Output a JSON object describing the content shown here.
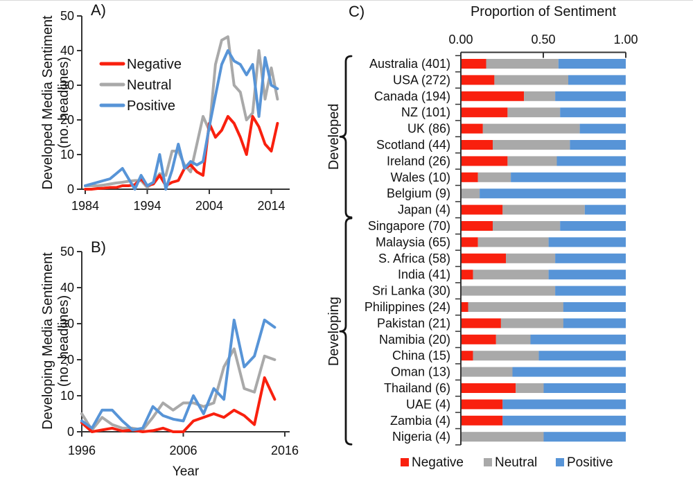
{
  "colors": {
    "negative": "#f9200e",
    "neutral": "#a9a9a9",
    "positive": "#5794d7",
    "axis": "#333333",
    "text": "#111111"
  },
  "panel_a": {
    "letter": "A)",
    "ylabel_line1": "Developed Media Sentiment",
    "ylabel_line2": "(no. headlines)"
  },
  "panel_b": {
    "letter": "B)",
    "ylabel_line1": "Developing Media Sentiment",
    "ylabel_line2": "(no. headlines)",
    "xlabel": "Year"
  },
  "panel_c": {
    "letter": "C)",
    "title": "Proportion of Sentiment"
  },
  "chart_data": [
    {
      "id": "A",
      "type": "line",
      "ylabel": "Developed Media Sentiment (no. headlines)",
      "ylim": [
        0,
        50
      ],
      "yticks": [
        0,
        10,
        20,
        30,
        40,
        50
      ],
      "xticks": [
        "1984",
        "1994",
        "2004",
        "2014"
      ],
      "xtick_years": [
        1984,
        1994,
        2004,
        2014
      ],
      "years": [
        1984,
        1985,
        1986,
        1987,
        1988,
        1989,
        1990,
        1991,
        1992,
        1993,
        1994,
        1995,
        1996,
        1997,
        1998,
        1999,
        2000,
        2001,
        2002,
        2003,
        2004,
        2005,
        2006,
        2007,
        2008,
        2009,
        2010,
        2011,
        2012,
        2013,
        2014,
        2015
      ],
      "legend": [
        "Negative",
        "Neutral",
        "Positive"
      ],
      "series": [
        {
          "name": "Negative",
          "color_key": "negative",
          "values": [
            0,
            0,
            0.2,
            0.3,
            0.5,
            0.5,
            1,
            1,
            1.3,
            3,
            1,
            1.5,
            4,
            1,
            2,
            2.5,
            6,
            7,
            5,
            4,
            19,
            15,
            17,
            21,
            19,
            15,
            10,
            21,
            18,
            13,
            11,
            19
          ]
        },
        {
          "name": "Neutral",
          "color_key": "neutral",
          "values": [
            1,
            1,
            1,
            1.2,
            1.5,
            1.8,
            2,
            2.3,
            2.5,
            2.5,
            0.5,
            2,
            4.5,
            4,
            11,
            11,
            7,
            5,
            13,
            21,
            17,
            36,
            43,
            44,
            30,
            28,
            20,
            22,
            40,
            26,
            35,
            26
          ]
        },
        {
          "name": "Positive",
          "color_key": "positive",
          "values": [
            1,
            1.5,
            2,
            2.5,
            3,
            4.5,
            6,
            3,
            0,
            4,
            1,
            2,
            10,
            0,
            5.5,
            13,
            6,
            8,
            7,
            8,
            18,
            27,
            36,
            40,
            37,
            36,
            33,
            36,
            21,
            38,
            30,
            29
          ]
        }
      ]
    },
    {
      "id": "B",
      "type": "line",
      "ylabel": "Developing Media Sentiment (no. headlines)",
      "xlabel": "Year",
      "ylim": [
        0,
        50
      ],
      "yticks": [
        0,
        10,
        20,
        30,
        40,
        50
      ],
      "xticks": [
        "1996",
        "2006",
        "2016"
      ],
      "xtick_years": [
        1996,
        2006,
        2016
      ],
      "years": [
        1996,
        1997,
        1998,
        1999,
        2000,
        2001,
        2002,
        2003,
        2004,
        2005,
        2006,
        2007,
        2008,
        2009,
        2010,
        2011,
        2012,
        2013,
        2014,
        2015
      ],
      "legend": [
        "Negative",
        "Neutral",
        "Positive"
      ],
      "series": [
        {
          "name": "Negative",
          "color_key": "negative",
          "values": [
            2.5,
            0,
            0.5,
            1,
            0.2,
            0.5,
            0,
            0.3,
            1,
            0,
            0,
            3,
            4,
            5,
            4,
            6,
            4.5,
            2,
            15,
            9
          ]
        },
        {
          "name": "Neutral",
          "color_key": "neutral",
          "values": [
            5,
            0.5,
            4,
            2,
            1,
            1,
            0.5,
            4,
            8,
            6,
            8,
            8,
            7,
            8,
            18,
            23,
            12,
            11,
            21,
            20
          ]
        },
        {
          "name": "Positive",
          "color_key": "positive",
          "values": [
            3,
            1,
            6,
            6,
            3,
            0.5,
            1,
            7,
            4.5,
            3.5,
            3,
            10,
            5,
            12,
            9,
            31,
            18,
            21,
            31,
            29
          ]
        }
      ]
    },
    {
      "id": "C",
      "type": "stacked-bar-horizontal",
      "title": "Proportion of Sentiment",
      "xlim": [
        0,
        1
      ],
      "xticks": [
        "0.00",
        "0.50",
        "1.00"
      ],
      "xtick_values": [
        0,
        0.5,
        1
      ],
      "legend": [
        "Negative",
        "Neutral",
        "Positive"
      ],
      "groups": [
        {
          "label": "Developed",
          "rows": [
            {
              "label": "Australia (401)",
              "negative": 0.15,
              "neutral": 0.44,
              "positive": 0.41
            },
            {
              "label": "USA (272)",
              "negative": 0.2,
              "neutral": 0.45,
              "positive": 0.35
            },
            {
              "label": "Canada (194)",
              "negative": 0.38,
              "neutral": 0.19,
              "positive": 0.43
            },
            {
              "label": "NZ (101)",
              "negative": 0.28,
              "neutral": 0.32,
              "positive": 0.4
            },
            {
              "label": "UK (86)",
              "negative": 0.13,
              "neutral": 0.59,
              "positive": 0.28
            },
            {
              "label": "Scotland (44)",
              "negative": 0.19,
              "neutral": 0.47,
              "positive": 0.34
            },
            {
              "label": "Ireland (26)",
              "negative": 0.28,
              "neutral": 0.3,
              "positive": 0.42
            },
            {
              "label": "Wales (10)",
              "negative": 0.1,
              "neutral": 0.2,
              "positive": 0.7
            },
            {
              "label": "Belgium (9)",
              "negative": 0.0,
              "neutral": 0.11,
              "positive": 0.89
            },
            {
              "label": "Japan (4)",
              "negative": 0.25,
              "neutral": 0.5,
              "positive": 0.25
            }
          ]
        },
        {
          "label": "Developing",
          "rows": [
            {
              "label": "Singapore (70)",
              "negative": 0.19,
              "neutral": 0.41,
              "positive": 0.4
            },
            {
              "label": "Malaysia (65)",
              "negative": 0.1,
              "neutral": 0.43,
              "positive": 0.47
            },
            {
              "label": "S. Africa (58)",
              "negative": 0.27,
              "neutral": 0.3,
              "positive": 0.43
            },
            {
              "label": "India (41)",
              "negative": 0.07,
              "neutral": 0.46,
              "positive": 0.47
            },
            {
              "label": "Sri Lanka (30)",
              "negative": 0.0,
              "neutral": 0.57,
              "positive": 0.43
            },
            {
              "label": "Philippines (24)",
              "negative": 0.04,
              "neutral": 0.58,
              "positive": 0.38
            },
            {
              "label": "Pakistan (21)",
              "negative": 0.24,
              "neutral": 0.38,
              "positive": 0.38
            },
            {
              "label": "Namibia (20)",
              "negative": 0.21,
              "neutral": 0.21,
              "positive": 0.58
            },
            {
              "label": "China (15)",
              "negative": 0.07,
              "neutral": 0.4,
              "positive": 0.53
            },
            {
              "label": "Oman (13)",
              "negative": 0.0,
              "neutral": 0.31,
              "positive": 0.69
            },
            {
              "label": "Thailand (6)",
              "negative": 0.33,
              "neutral": 0.17,
              "positive": 0.5
            },
            {
              "label": "UAE (4)",
              "negative": 0.25,
              "neutral": 0.0,
              "positive": 0.75
            },
            {
              "label": "Zambia (4)",
              "negative": 0.25,
              "neutral": 0.0,
              "positive": 0.75
            },
            {
              "label": "Nigeria (4)",
              "negative": 0.0,
              "neutral": 0.5,
              "positive": 0.5
            }
          ]
        }
      ]
    }
  ]
}
